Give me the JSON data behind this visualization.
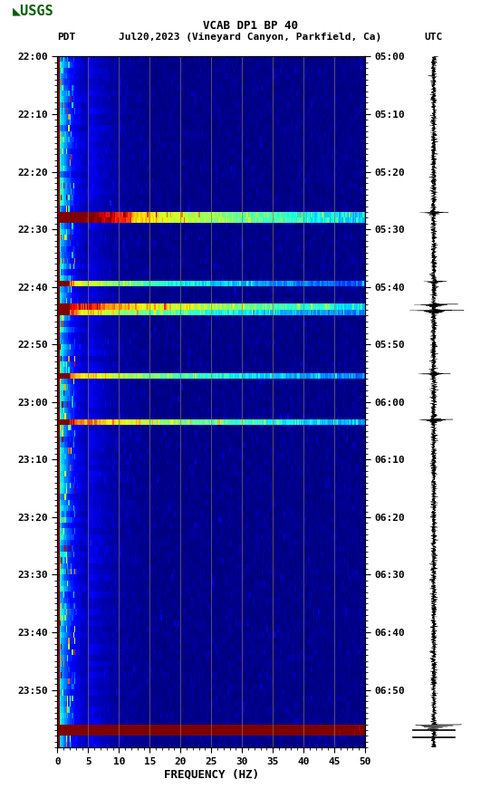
{
  "title_line1": "VCAB DP1 BP 40",
  "title_line2_left": "PDT",
  "title_line2_center": "Jul20,2023 (Vineyard Canyon, Parkfield, Ca)",
  "title_line2_right": "UTC",
  "xlabel": "FREQUENCY (HZ)",
  "freq_min": 0,
  "freq_max": 50,
  "freq_ticks": [
    0,
    5,
    10,
    15,
    20,
    25,
    30,
    35,
    40,
    45,
    50
  ],
  "time_labels_left": [
    "22:00",
    "22:10",
    "22:20",
    "22:30",
    "22:40",
    "22:50",
    "23:00",
    "23:10",
    "23:20",
    "23:30",
    "23:40",
    "23:50"
  ],
  "time_labels_right": [
    "05:00",
    "05:10",
    "05:20",
    "05:30",
    "05:40",
    "05:50",
    "06:00",
    "06:10",
    "06:20",
    "06:30",
    "06:40",
    "06:50"
  ],
  "n_time_steps": 120,
  "n_freq_steps": 250,
  "vertical_line_positions": [
    5,
    10,
    15,
    20,
    25,
    30,
    35,
    40,
    45
  ],
  "vertical_line_color": "#8B7355",
  "usgs_color": "#006000",
  "event_rows": [
    27,
    39,
    43,
    44,
    55,
    63,
    116
  ],
  "wave_event_rows": [
    27,
    39,
    43,
    44,
    55,
    63,
    116
  ],
  "wave_event_amps": [
    0.5,
    0.4,
    0.7,
    0.9,
    0.5,
    0.6,
    0.3
  ],
  "calib_rows": [
    117,
    118
  ]
}
